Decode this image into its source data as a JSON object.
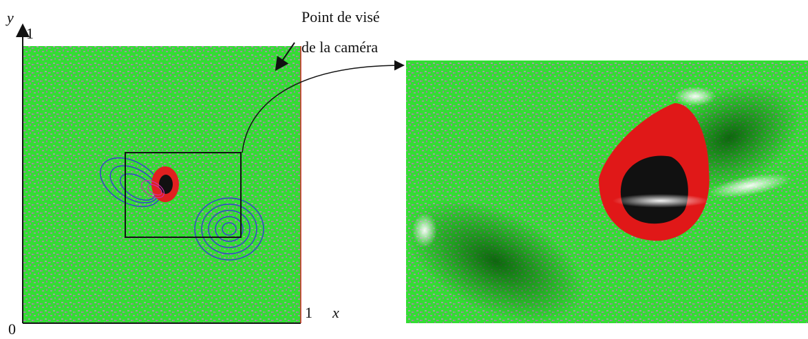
{
  "axes": {
    "y_label": "y",
    "y_max": "1",
    "origin": "0",
    "x_max": "1",
    "x_label": "x"
  },
  "annotation": {
    "lines": [
      "Point de visé",
      "de la caméra"
    ]
  }
}
